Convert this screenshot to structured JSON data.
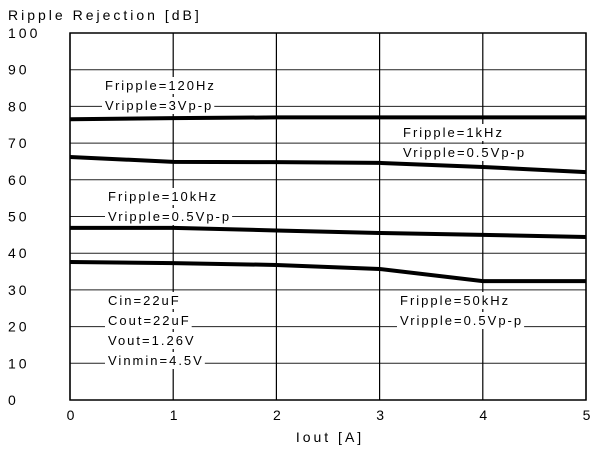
{
  "chart_data": {
    "type": "line",
    "title": "Ripple Rejection [dB]",
    "x_label": "Iout [A]",
    "x": [
      0,
      1,
      2,
      3,
      4,
      5
    ],
    "xlim": [
      0,
      5
    ],
    "xticks": [
      0,
      1,
      2,
      3,
      4,
      5
    ],
    "ylim": [
      0,
      100
    ],
    "yticks": [
      0,
      10,
      20,
      30,
      40,
      50,
      60,
      70,
      80,
      90,
      100
    ],
    "grid": true,
    "series": [
      {
        "color": "#000000",
        "values": [
          76.5,
          76.8,
          77,
          77,
          77,
          77
        ],
        "annotation": [
          "Fripple=120Hz",
          "Vripple=3Vp-p"
        ]
      },
      {
        "color": "#000000",
        "values": [
          66.2,
          64.9,
          64.8,
          64.6,
          63.5,
          62.1
        ],
        "annotation": [
          "Fripple=1kHz",
          "Vripple=0.5Vp-p"
        ]
      },
      {
        "color": "#000000",
        "values": [
          46.9,
          46.9,
          46.2,
          45.5,
          45,
          44.4
        ],
        "annotation": [
          "Fripple=10kHz",
          "Vripple=0.5Vp-p"
        ]
      },
      {
        "color": "#000000",
        "values": [
          37.6,
          37.3,
          36.8,
          35.7,
          32.4,
          32.4
        ],
        "annotation": [
          "Fripple=50kHz",
          "Vripple=0.5Vp-p"
        ]
      }
    ],
    "conditions": [
      "Cin=22uF",
      "Cout=22uF",
      "Vout=1.26V",
      "Vinmin=4.5V"
    ]
  }
}
